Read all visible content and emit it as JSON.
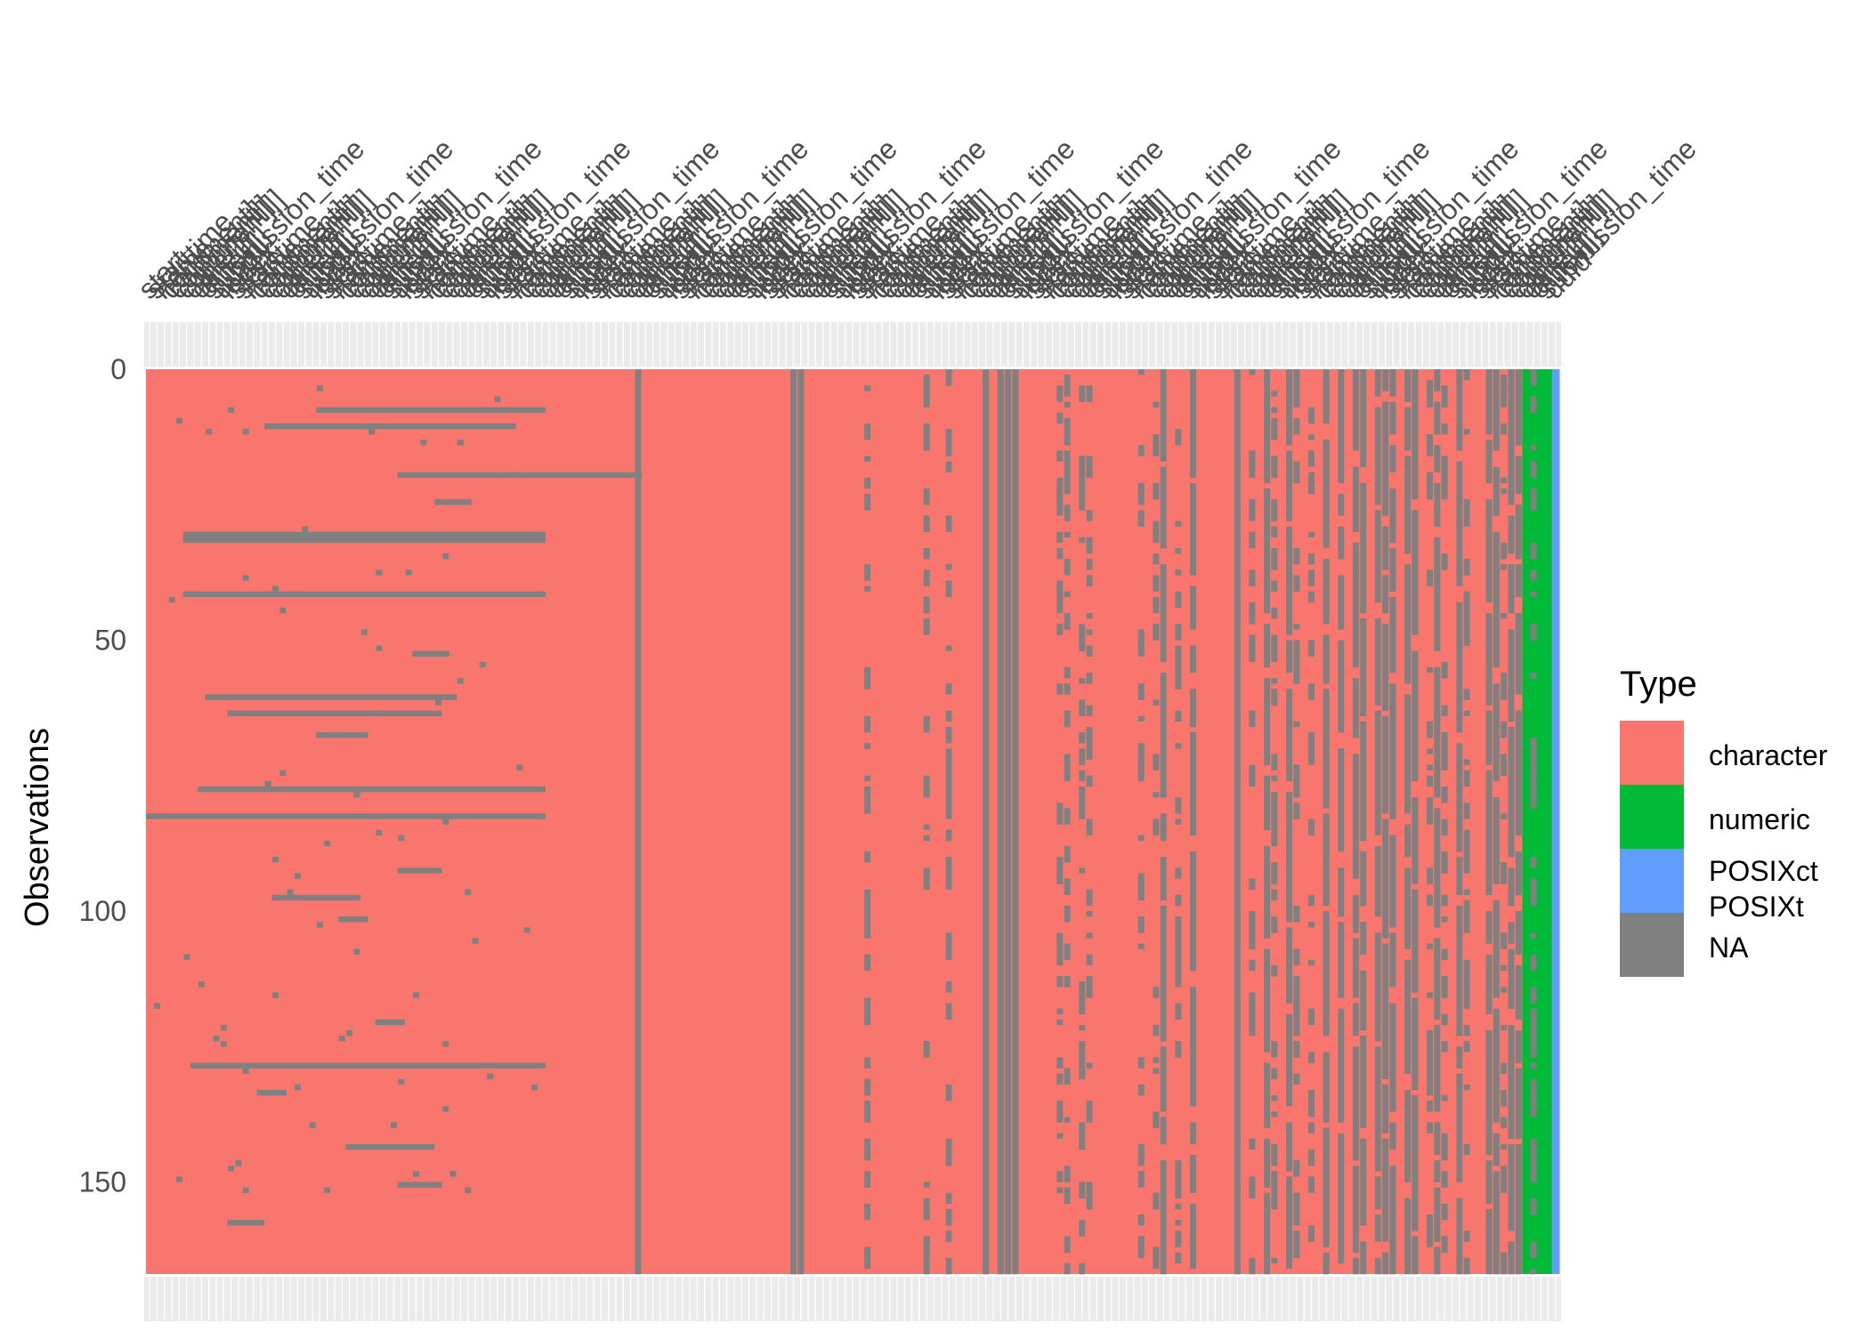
{
  "chart_data": {
    "type": "heatmap",
    "title": "",
    "xlabel": "",
    "ylabel": "Observations",
    "ylim": [
      0,
      167
    ],
    "y_ticks": [
      0,
      50,
      100,
      150
    ],
    "n_observations": 167,
    "n_columns": 191,
    "column_labels_legible": [
      "start",
      "starttime",
      "name",
      "comment]",
      "comment]]",
      "comment]]]",
      "other]",
      "other]]",
      "other]]]",
      "submission_time",
      "uuid",
      "index"
    ],
    "legend": {
      "title": "Type",
      "placement": "right",
      "entries": [
        {
          "label": "character",
          "color": "#F8766D"
        },
        {
          "label": "numeric",
          "color": "#00BA38"
        },
        {
          "label": "POSIXct\nPOSIXt",
          "color": "#619CFF"
        },
        {
          "label": "NA",
          "color": "#808080"
        }
      ]
    },
    "column_types": [
      {
        "from": 1,
        "to": 186,
        "type": "character"
      },
      {
        "from": 187,
        "to": 190,
        "type": "numeric"
      },
      {
        "from": 191,
        "to": 191,
        "type": "POSIXct POSIXt"
      }
    ],
    "grid": true,
    "missing_columns_full": [
      67,
      88,
      89,
      114,
      116,
      117,
      118,
      148
    ],
    "missing_columns_most": [
      138,
      142,
      152,
      155,
      160,
      162,
      164,
      165,
      167,
      168,
      169,
      171,
      172,
      175,
      178,
      182,
      183,
      185,
      186
    ],
    "missing_columns_sparse": [
      98,
      106,
      109,
      124,
      125,
      127,
      128,
      135,
      137,
      140,
      150,
      153,
      156,
      158,
      174,
      176,
      179,
      184,
      188
    ],
    "missing_row_bands": [
      {
        "row": 7,
        "from": 24,
        "to": 54
      },
      {
        "row": 10,
        "from": 17,
        "to": 50
      },
      {
        "row": 19,
        "from": 35,
        "to": 67
      },
      {
        "row": 24,
        "from": 40,
        "to": 44
      },
      {
        "row": 30,
        "from": 6,
        "to": 54
      },
      {
        "row": 31,
        "from": 6,
        "to": 54
      },
      {
        "row": 41,
        "from": 6,
        "to": 54
      },
      {
        "row": 52,
        "from": 37,
        "to": 41
      },
      {
        "row": 60,
        "from": 9,
        "to": 42
      },
      {
        "row": 63,
        "from": 12,
        "to": 40
      },
      {
        "row": 67,
        "from": 24,
        "to": 30
      },
      {
        "row": 77,
        "from": 8,
        "to": 54
      },
      {
        "row": 82,
        "from": 1,
        "to": 54
      },
      {
        "row": 92,
        "from": 35,
        "to": 40
      },
      {
        "row": 97,
        "from": 18,
        "to": 29
      },
      {
        "row": 101,
        "from": 27,
        "to": 30
      },
      {
        "row": 120,
        "from": 32,
        "to": 35
      },
      {
        "row": 128,
        "from": 7,
        "to": 54
      },
      {
        "row": 133,
        "from": 16,
        "to": 19
      },
      {
        "row": 143,
        "from": 28,
        "to": 39
      },
      {
        "row": 150,
        "from": 35,
        "to": 40
      },
      {
        "row": 157,
        "from": 12,
        "to": 16
      }
    ]
  }
}
